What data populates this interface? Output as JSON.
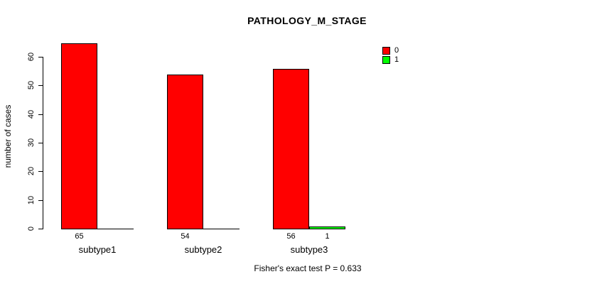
{
  "title": "PATHOLOGY_M_STAGE",
  "ylabel": "number of cases",
  "annotation": "Fisher's exact test P = 0.633",
  "colors": {
    "background": "#ffffff",
    "axis": "#000000",
    "series_0": "#ff0000",
    "series_1": "#00ff00"
  },
  "legend": {
    "items": [
      {
        "label": "0",
        "color": "#ff0000"
      },
      {
        "label": "1",
        "color": "#00ff00"
      }
    ]
  },
  "chart_data": {
    "type": "bar",
    "grouped": true,
    "title": "PATHOLOGY_M_STAGE",
    "xlabel": "",
    "ylabel": "number of cases",
    "categories": [
      "subtype1",
      "subtype2",
      "subtype3"
    ],
    "series": [
      {
        "name": "0",
        "color": "#ff0000",
        "values": [
          65,
          54,
          56
        ]
      },
      {
        "name": "1",
        "color": "#00ff00",
        "values": [
          0,
          0,
          1
        ]
      }
    ],
    "bar_value_labels": [
      [
        "65",
        null
      ],
      [
        "54",
        null
      ],
      [
        "56",
        "1"
      ]
    ],
    "ylim": [
      0,
      60
    ],
    "yticks": [
      0,
      10,
      20,
      30,
      40,
      50,
      60
    ],
    "grid": false,
    "legend_position": "top-right",
    "annotation": "Fisher's exact test P = 0.633"
  }
}
